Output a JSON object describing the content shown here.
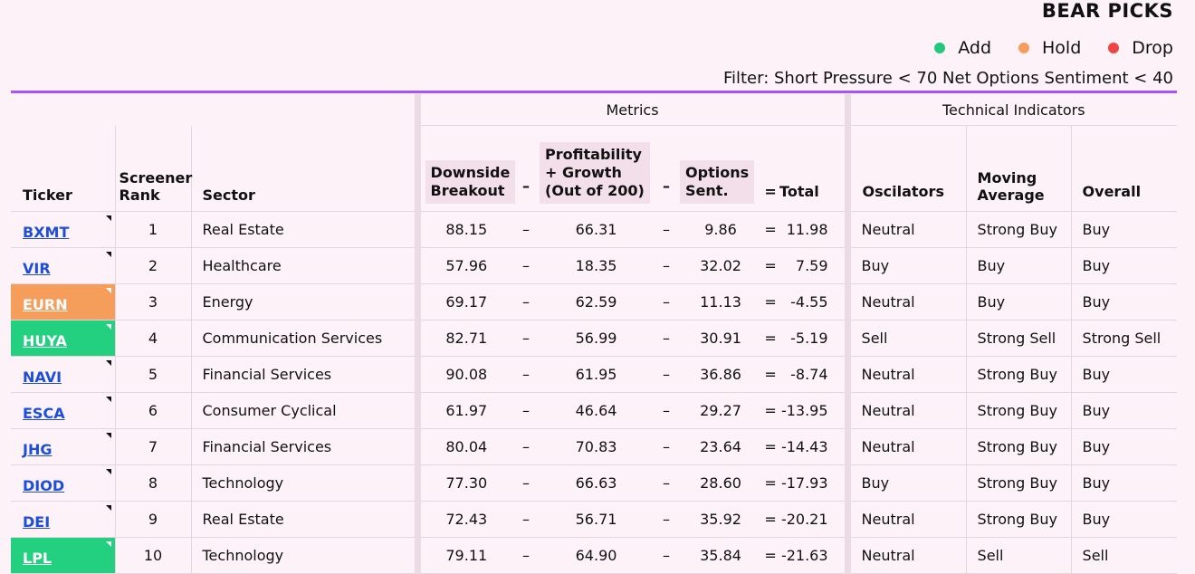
{
  "title": "BEAR PICKS",
  "legend": [
    {
      "label": "Add",
      "color": "#22c97b"
    },
    {
      "label": "Hold",
      "color": "#f59e5b"
    },
    {
      "label": "Drop",
      "color": "#ef4444"
    }
  ],
  "filter": "Filter: Short Pressure < 70  Net Options Sentiment < 40",
  "headers": {
    "metrics": "Metrics",
    "technical": "Technical Indicators",
    "ticker": "Ticker",
    "screener_rank_1": "Screener",
    "screener_rank_2": "Rank",
    "sector": "Sector",
    "downside_1": "Downside",
    "downside_2": "Breakout",
    "profit_1": "Profitability",
    "profit_2": "+ Growth",
    "profit_3": "(Out of 200)",
    "options_1": "Options",
    "options_2": "Sent.",
    "minus": "–",
    "equals": "=",
    "total": "Total",
    "oscillators": "Oscilators",
    "moving_1": "Moving",
    "moving_2": "Average",
    "overall": "Overall"
  },
  "rows": [
    {
      "ticker": "BXMT",
      "status": "none",
      "rank": "1",
      "sector": "Real Estate",
      "downside": "88.15",
      "profit": "66.31",
      "options": "9.86",
      "total": "11.98",
      "osc": "Neutral",
      "ma": "Strong Buy",
      "overall": "Buy"
    },
    {
      "ticker": "VIR",
      "status": "none",
      "rank": "2",
      "sector": "Healthcare",
      "downside": "57.96",
      "profit": "18.35",
      "options": "32.02",
      "total": "7.59",
      "osc": "Buy",
      "ma": "Buy",
      "overall": "Buy"
    },
    {
      "ticker": "EURN",
      "status": "hold",
      "rank": "3",
      "sector": "Energy",
      "downside": "69.17",
      "profit": "62.59",
      "options": "11.13",
      "total": "-4.55",
      "osc": "Neutral",
      "ma": "Buy",
      "overall": "Buy"
    },
    {
      "ticker": "HUYA",
      "status": "add",
      "rank": "4",
      "sector": "Communication Services",
      "downside": "82.71",
      "profit": "56.99",
      "options": "30.91",
      "total": "-5.19",
      "osc": "Sell",
      "ma": "Strong Sell",
      "overall": "Strong Sell"
    },
    {
      "ticker": "NAVI",
      "status": "none",
      "rank": "5",
      "sector": "Financial Services",
      "downside": "90.08",
      "profit": "61.95",
      "options": "36.86",
      "total": "-8.74",
      "osc": "Neutral",
      "ma": "Strong Buy",
      "overall": "Buy"
    },
    {
      "ticker": "ESCA",
      "status": "none",
      "rank": "6",
      "sector": "Consumer Cyclical",
      "downside": "61.97",
      "profit": "46.64",
      "options": "29.27",
      "total": "-13.95",
      "osc": "Neutral",
      "ma": "Strong Buy",
      "overall": "Buy"
    },
    {
      "ticker": "JHG",
      "status": "none",
      "rank": "7",
      "sector": "Financial Services",
      "downside": "80.04",
      "profit": "70.83",
      "options": "23.64",
      "total": "-14.43",
      "osc": "Neutral",
      "ma": "Strong Buy",
      "overall": "Buy"
    },
    {
      "ticker": "DIOD",
      "status": "none",
      "rank": "8",
      "sector": "Technology",
      "downside": "77.30",
      "profit": "66.63",
      "options": "28.60",
      "total": "-17.93",
      "osc": "Buy",
      "ma": "Strong Buy",
      "overall": "Buy"
    },
    {
      "ticker": "DEI",
      "status": "none",
      "rank": "9",
      "sector": "Real Estate",
      "downside": "72.43",
      "profit": "56.71",
      "options": "35.92",
      "total": "-20.21",
      "osc": "Neutral",
      "ma": "Strong Buy",
      "overall": "Buy"
    },
    {
      "ticker": "LPL",
      "status": "add",
      "rank": "10",
      "sector": "Technology",
      "downside": "79.11",
      "profit": "64.90",
      "options": "35.84",
      "total": "-21.63",
      "osc": "Neutral",
      "ma": "Sell",
      "overall": "Sell"
    }
  ]
}
